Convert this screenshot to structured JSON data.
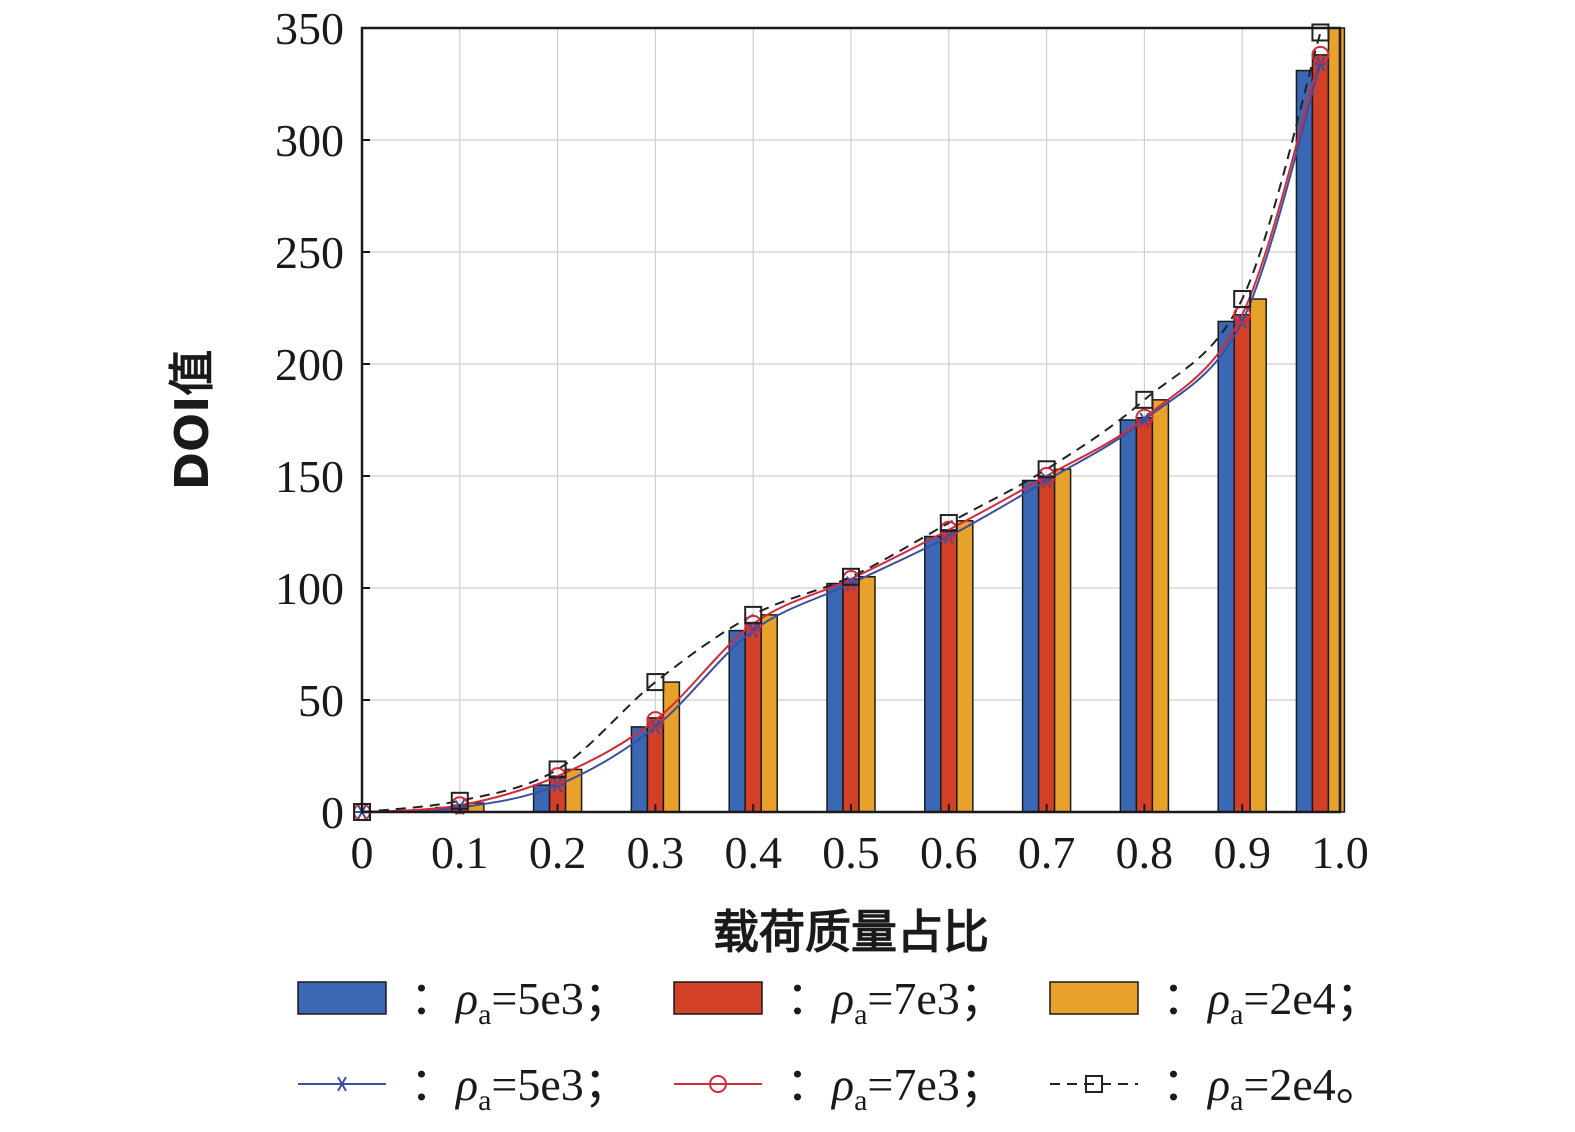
{
  "chart_data": {
    "type": "bar",
    "xlabel": "载荷质量占比",
    "ylabel": "DOI值",
    "x_ticks": [
      "0",
      "0.1",
      "0.2",
      "0.3",
      "0.4",
      "0.5",
      "0.6",
      "0.7",
      "0.8",
      "0.9",
      "1.0"
    ],
    "y_ticks": [
      "0",
      "50",
      "100",
      "150",
      "200",
      "250",
      "300",
      "350"
    ],
    "xlim": [
      0,
      1.0
    ],
    "ylim": [
      0,
      350
    ],
    "grid": true,
    "bar_categories": [
      0.1,
      0.2,
      0.3,
      0.4,
      0.5,
      0.6,
      0.7,
      0.8,
      0.9,
      0.98
    ],
    "bar_series": [
      {
        "legend": "ρa=5e3；",
        "color": "#3a68b4",
        "values": [
          2,
          12,
          38,
          81,
          102,
          123,
          148,
          175,
          219,
          331
        ]
      },
      {
        "legend": "ρa=7e3；",
        "color": "#d24127",
        "values": [
          3,
          16,
          42,
          84,
          104,
          126,
          150,
          176,
          222,
          338
        ]
      },
      {
        "legend": "ρa=2e4；",
        "color": "#e8a22b",
        "values": [
          4,
          19,
          58,
          88,
          105,
          130,
          153,
          184,
          229,
          350
        ]
      }
    ],
    "line_categories": [
      0,
      0.1,
      0.2,
      0.3,
      0.4,
      0.5,
      0.6,
      0.7,
      0.8,
      0.9,
      0.98
    ],
    "line_series": [
      {
        "legend": "ρa=5e3；",
        "color": "#3a4f9e",
        "marker": "star",
        "dash": "solid",
        "values": [
          0,
          2,
          12,
          38,
          81,
          102,
          123,
          148,
          175,
          219,
          334
        ]
      },
      {
        "legend": "ρa=7e3；",
        "color": "#d42a3a",
        "marker": "circle",
        "dash": "solid",
        "values": [
          0,
          3,
          16,
          41,
          84,
          104,
          126,
          150,
          176,
          222,
          338
        ]
      },
      {
        "legend": "ρa=2e4。",
        "color": "#222222",
        "marker": "square",
        "dash": "dashed",
        "values": [
          0,
          5,
          19,
          58,
          88,
          105,
          129,
          153,
          184,
          229,
          348
        ]
      }
    ]
  },
  "legend": {
    "separator": "：",
    "bar_entries": [
      "ρa=5e3；",
      "ρa=7e3；",
      "ρa=2e4；"
    ],
    "line_entries": [
      "ρa=5e3；",
      "ρa=7e3；",
      "ρa=2e4。"
    ]
  }
}
